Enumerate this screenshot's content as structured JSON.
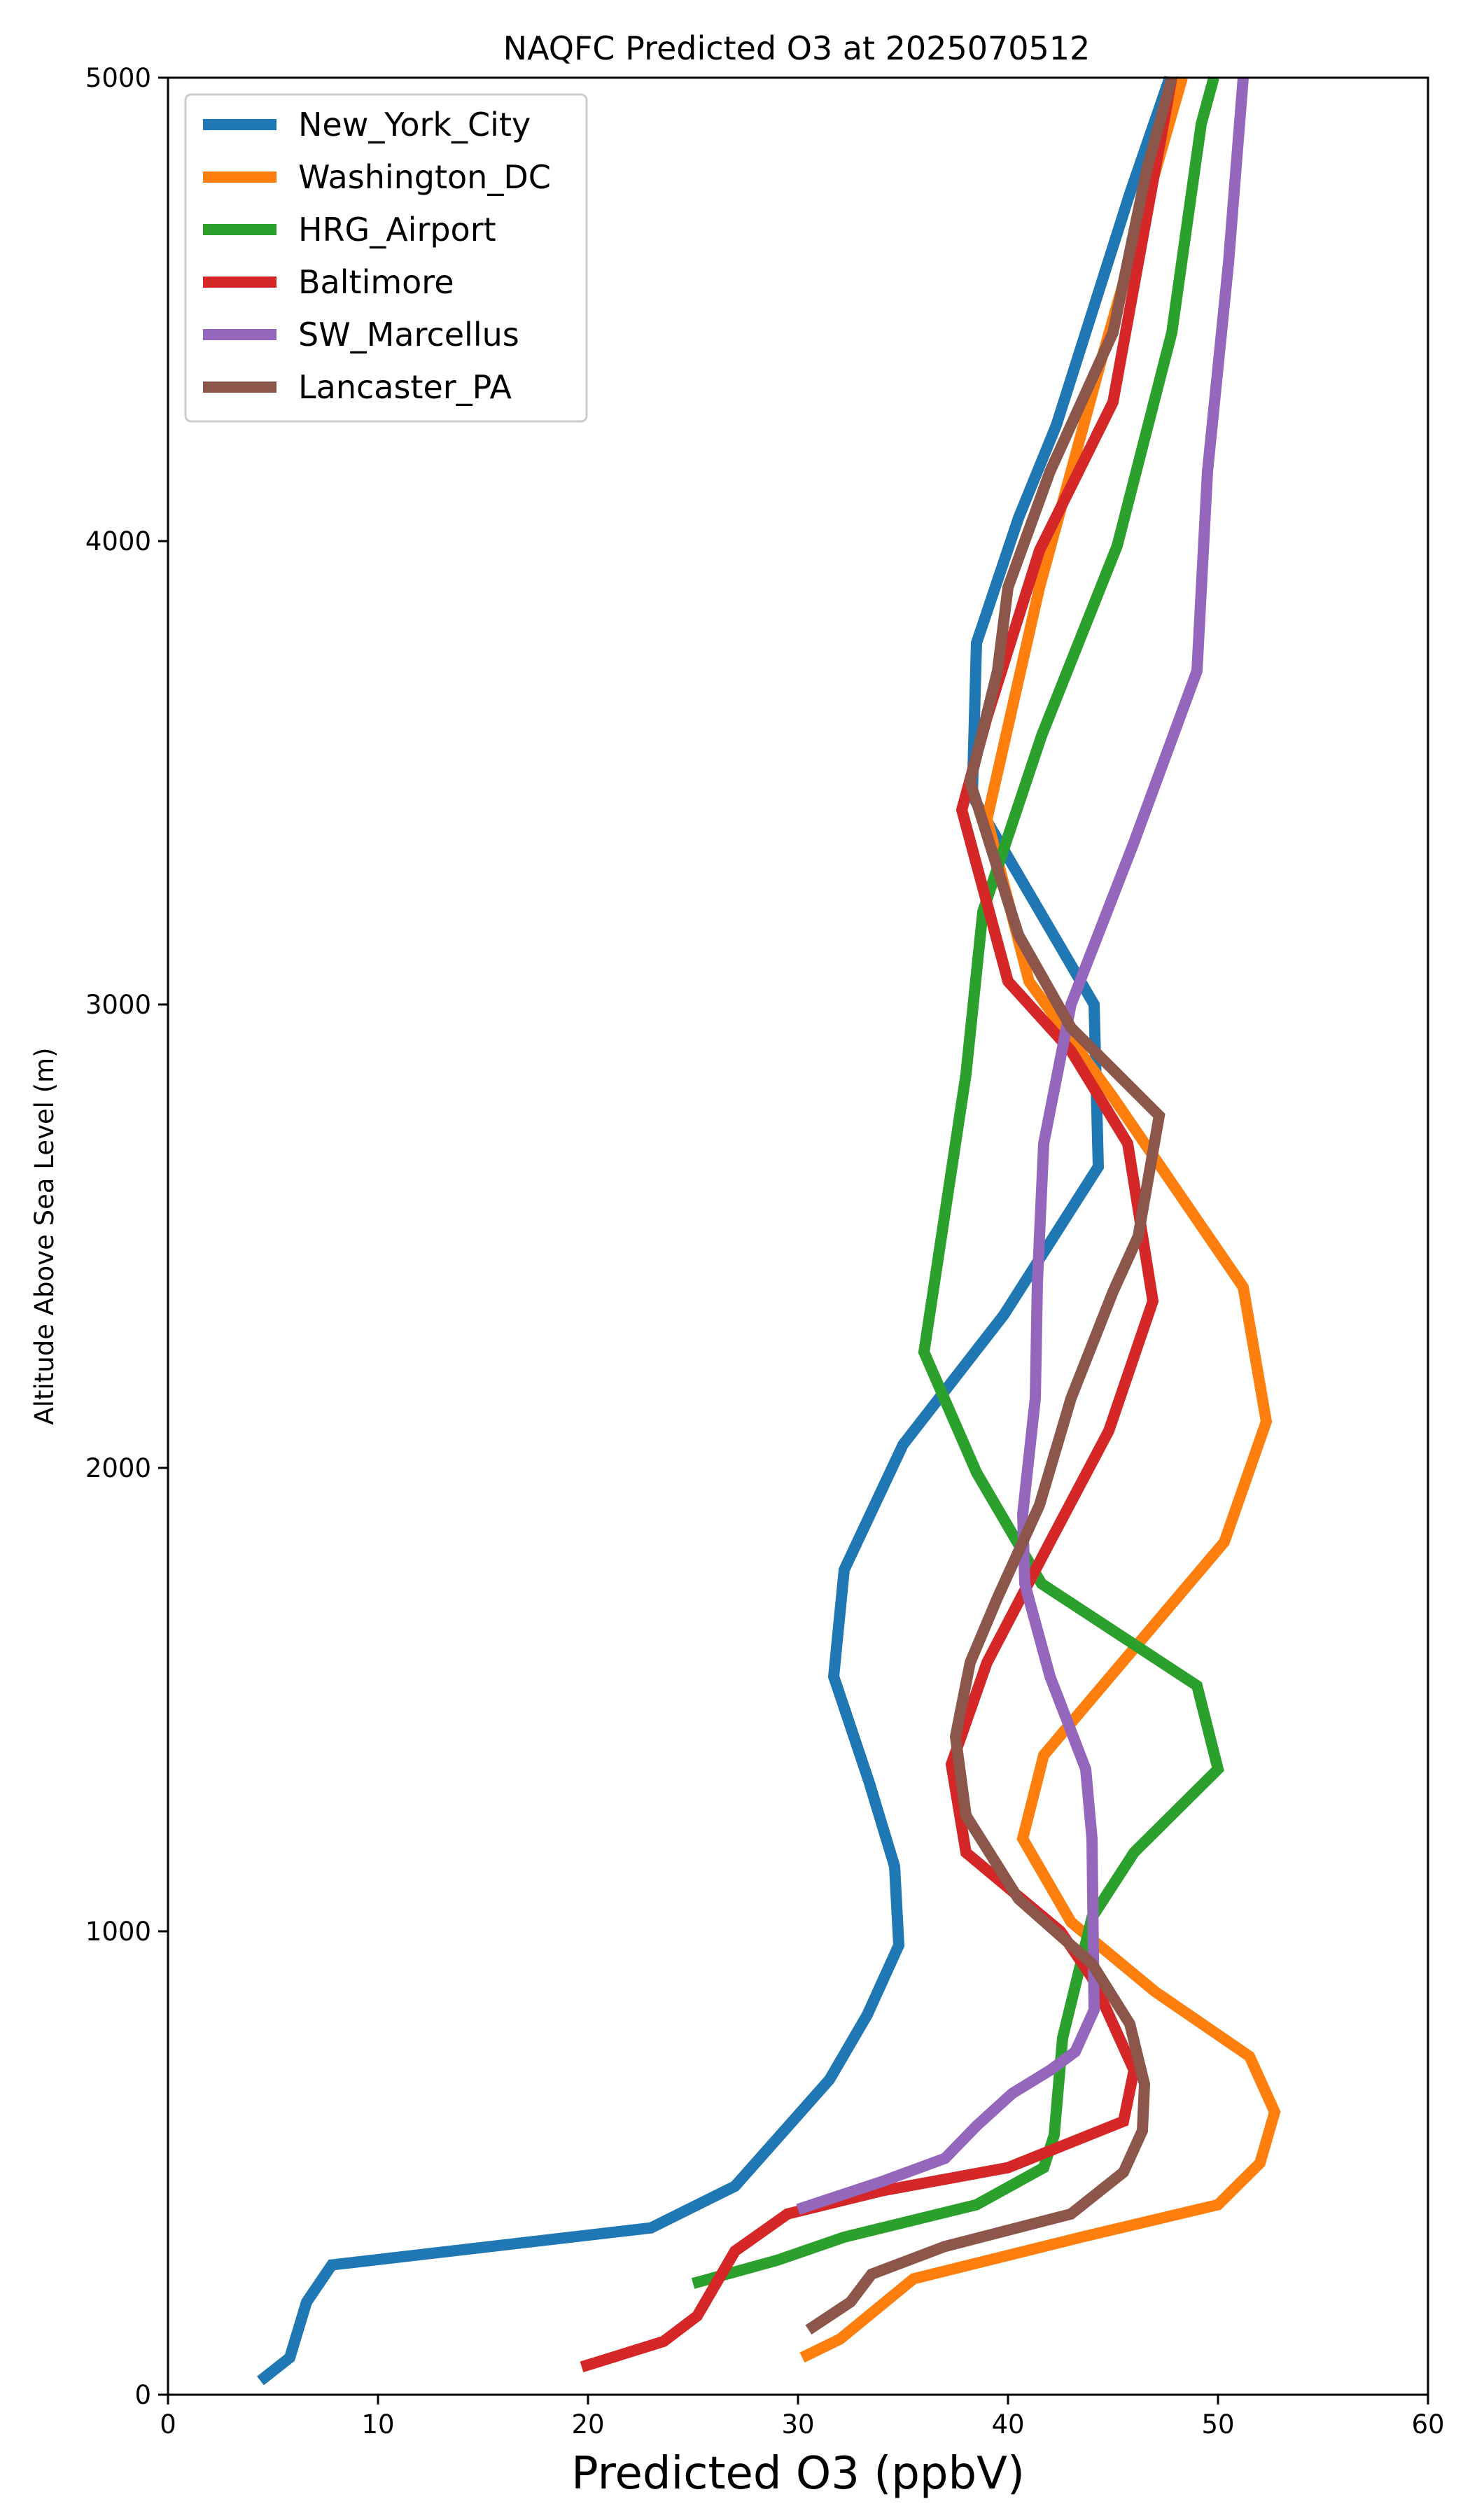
{
  "chart_data": {
    "type": "line",
    "title": "NAQFC Predicted O3 at 2025070512",
    "xlabel": "Predicted O3 (ppbV)",
    "ylabel": "Altitude Above Sea Level (m)",
    "xlim": [
      0,
      60
    ],
    "ylim": [
      0,
      5000
    ],
    "x_ticks": [
      0,
      10,
      20,
      30,
      40,
      50,
      60
    ],
    "y_ticks": [
      0,
      1000,
      2000,
      3000,
      4000,
      5000
    ],
    "grid": false,
    "legend_position": "upper-left",
    "series": [
      {
        "name": "New_York_City",
        "color": "#1f77b4",
        "points": [
          [
            4.4,
            30
          ],
          [
            5.8,
            80
          ],
          [
            6.6,
            200
          ],
          [
            7.8,
            280
          ],
          [
            23.0,
            360
          ],
          [
            27.0,
            450
          ],
          [
            31.5,
            680
          ],
          [
            33.3,
            820
          ],
          [
            34.8,
            970
          ],
          [
            34.6,
            1140
          ],
          [
            33.4,
            1320
          ],
          [
            31.7,
            1550
          ],
          [
            32.2,
            1780
          ],
          [
            35.0,
            2050
          ],
          [
            39.8,
            2330
          ],
          [
            44.3,
            2650
          ],
          [
            44.1,
            3000
          ],
          [
            38.3,
            3450
          ],
          [
            38.5,
            3780
          ],
          [
            40.5,
            4050
          ],
          [
            42.3,
            4250
          ],
          [
            45.8,
            4750
          ],
          [
            47.7,
            5000
          ]
        ]
      },
      {
        "name": "Washington_DC",
        "color": "#ff7f0e",
        "points": [
          [
            30.2,
            80
          ],
          [
            32.0,
            120
          ],
          [
            35.5,
            250
          ],
          [
            43.5,
            340
          ],
          [
            50.0,
            410
          ],
          [
            52.0,
            500
          ],
          [
            52.7,
            610
          ],
          [
            51.5,
            730
          ],
          [
            47.0,
            870
          ],
          [
            43.0,
            1020
          ],
          [
            40.7,
            1200
          ],
          [
            41.7,
            1380
          ],
          [
            50.3,
            1840
          ],
          [
            52.3,
            2100
          ],
          [
            51.2,
            2390
          ],
          [
            45.0,
            2800
          ],
          [
            41.0,
            3050
          ],
          [
            39.0,
            3400
          ],
          [
            41.5,
            3900
          ],
          [
            44.5,
            4400
          ],
          [
            48.3,
            5000
          ]
        ]
      },
      {
        "name": "HRG_Airport",
        "color": "#2ca02c",
        "points": [
          [
            25.0,
            240
          ],
          [
            29.0,
            290
          ],
          [
            32.2,
            340
          ],
          [
            38.5,
            410
          ],
          [
            41.7,
            490
          ],
          [
            42.2,
            560
          ],
          [
            42.6,
            770
          ],
          [
            44.0,
            1030
          ],
          [
            46.0,
            1170
          ],
          [
            50.0,
            1350
          ],
          [
            49.0,
            1530
          ],
          [
            41.6,
            1750
          ],
          [
            38.5,
            1990
          ],
          [
            36.0,
            2250
          ],
          [
            38.0,
            2850
          ],
          [
            38.8,
            3200
          ],
          [
            41.6,
            3580
          ],
          [
            45.2,
            3990
          ],
          [
            47.8,
            4450
          ],
          [
            49.2,
            4900
          ],
          [
            49.8,
            5000
          ]
        ]
      },
      {
        "name": "Baltimore",
        "color": "#d62728",
        "points": [
          [
            19.7,
            60
          ],
          [
            23.6,
            115
          ],
          [
            25.2,
            170
          ],
          [
            27.0,
            310
          ],
          [
            29.5,
            390
          ],
          [
            34.0,
            440
          ],
          [
            40.0,
            490
          ],
          [
            45.5,
            590
          ],
          [
            46.0,
            700
          ],
          [
            44.0,
            900
          ],
          [
            42.5,
            1000
          ],
          [
            38.0,
            1170
          ],
          [
            37.3,
            1360
          ],
          [
            39.0,
            1580
          ],
          [
            42.0,
            1840
          ],
          [
            44.8,
            2080
          ],
          [
            46.9,
            2360
          ],
          [
            45.7,
            2700
          ],
          [
            43.0,
            2900
          ],
          [
            40.0,
            3050
          ],
          [
            37.8,
            3420
          ],
          [
            39.0,
            3620
          ],
          [
            41.5,
            3980
          ],
          [
            45.0,
            4300
          ],
          [
            47.0,
            4800
          ],
          [
            47.8,
            5000
          ]
        ]
      },
      {
        "name": "SW_Marcellus",
        "color": "#9467bd",
        "points": [
          [
            30.0,
            400
          ],
          [
            34.0,
            460
          ],
          [
            37.0,
            510
          ],
          [
            38.5,
            580
          ],
          [
            40.2,
            650
          ],
          [
            42.0,
            700
          ],
          [
            43.2,
            740
          ],
          [
            44.1,
            830
          ],
          [
            44.0,
            1200
          ],
          [
            43.7,
            1350
          ],
          [
            42.0,
            1550
          ],
          [
            40.8,
            1750
          ],
          [
            40.7,
            1900
          ],
          [
            41.3,
            2150
          ],
          [
            41.4,
            2400
          ],
          [
            41.7,
            2700
          ],
          [
            43.0,
            3000
          ],
          [
            46.0,
            3350
          ],
          [
            49.0,
            3720
          ],
          [
            49.5,
            4150
          ],
          [
            50.5,
            4600
          ],
          [
            51.2,
            5000
          ]
        ]
      },
      {
        "name": "Lancaster_PA",
        "color": "#8c564b",
        "points": [
          [
            30.5,
            140
          ],
          [
            32.5,
            200
          ],
          [
            33.5,
            260
          ],
          [
            37.0,
            320
          ],
          [
            43.0,
            390
          ],
          [
            45.5,
            480
          ],
          [
            46.4,
            570
          ],
          [
            46.5,
            670
          ],
          [
            45.8,
            800
          ],
          [
            44.0,
            930
          ],
          [
            40.5,
            1070
          ],
          [
            38.0,
            1250
          ],
          [
            37.5,
            1420
          ],
          [
            38.2,
            1580
          ],
          [
            39.5,
            1720
          ],
          [
            41.5,
            1920
          ],
          [
            43.0,
            2150
          ],
          [
            45.0,
            2380
          ],
          [
            46.2,
            2500
          ],
          [
            47.2,
            2760
          ],
          [
            43.0,
            2950
          ],
          [
            40.5,
            3150
          ],
          [
            38.2,
            3480
          ],
          [
            39.5,
            3720
          ],
          [
            40.0,
            3900
          ],
          [
            42.0,
            4150
          ],
          [
            45.0,
            4450
          ],
          [
            46.6,
            4800
          ],
          [
            47.8,
            5000
          ]
        ]
      }
    ]
  }
}
